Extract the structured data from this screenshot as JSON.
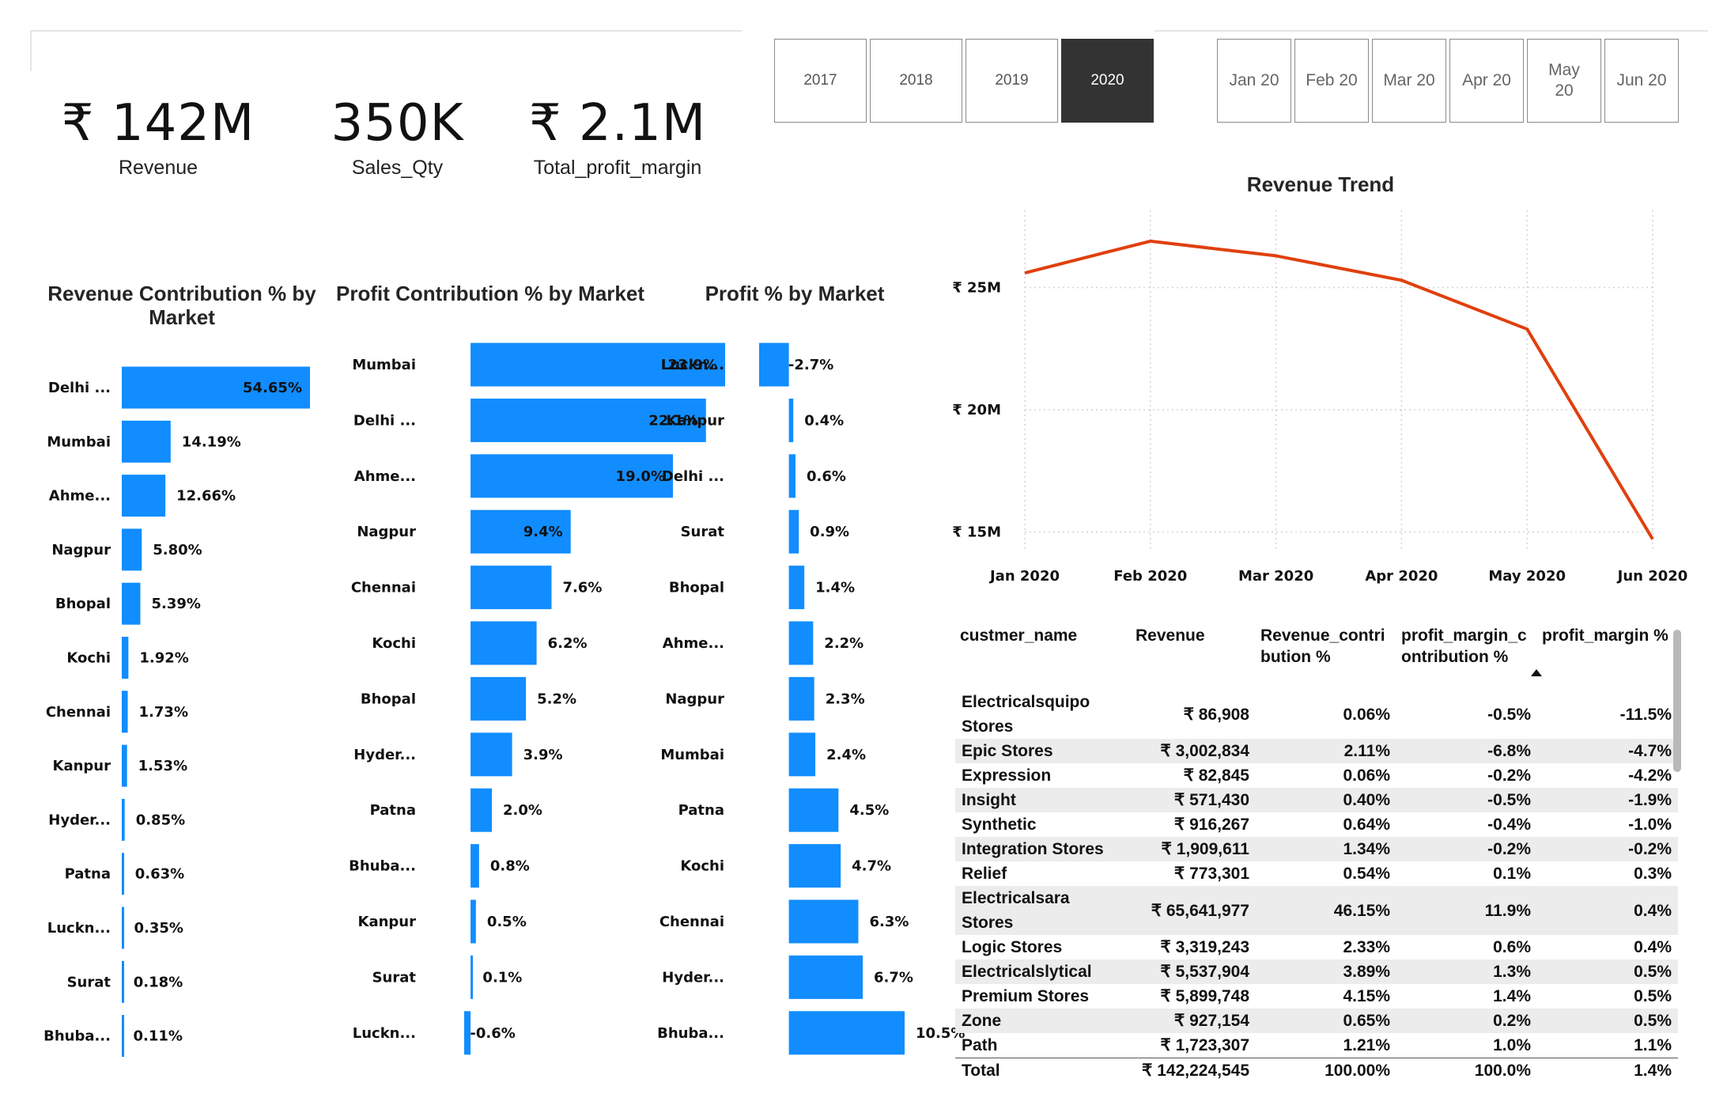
{
  "kpis": [
    {
      "value": "₹ 142M",
      "label": "Revenue"
    },
    {
      "value": "350K",
      "label": "Sales_Qty"
    },
    {
      "value": "₹ 2.1M",
      "label": "Total_profit_margin"
    }
  ],
  "year_slicer": {
    "options": [
      "2017",
      "2018",
      "2019",
      "2020"
    ],
    "selected": "2020"
  },
  "month_slicer": {
    "options": [
      "Jan 20",
      "Feb 20",
      "Mar 20",
      "Apr 20",
      "May\n20",
      "Jun 20"
    ]
  },
  "colors": {
    "bar": "#118DFF",
    "trend_line": "#E0400E",
    "selected_slicer": "#333333"
  },
  "chart_data": [
    {
      "type": "bar",
      "orientation": "horizontal",
      "title": "Revenue Contribution % by Market",
      "categories": [
        "Delhi ...",
        "Mumbai",
        "Ahme...",
        "Nagpur",
        "Bhopal",
        "Kochi",
        "Chennai",
        "Kanpur",
        "Hyder...",
        "Patna",
        "Luckn...",
        "Surat",
        "Bhuba..."
      ],
      "values": [
        54.65,
        14.19,
        12.66,
        5.8,
        5.39,
        1.92,
        1.73,
        1.53,
        0.85,
        0.63,
        0.35,
        0.18,
        0.11
      ],
      "labels": [
        "54.65%",
        "14.19%",
        "12.66%",
        "5.80%",
        "5.39%",
        "1.92%",
        "1.73%",
        "1.53%",
        "0.85%",
        "0.63%",
        "0.35%",
        "0.18%",
        "0.11%"
      ],
      "xlim": [
        0,
        54.65
      ]
    },
    {
      "type": "bar",
      "orientation": "horizontal",
      "title": "Profit Contribution % by Market",
      "categories": [
        "Mumbai",
        "Delhi ...",
        "Ahme...",
        "Nagpur",
        "Chennai",
        "Kochi",
        "Bhopal",
        "Hyder...",
        "Patna",
        "Bhuba...",
        "Kanpur",
        "Surat",
        "Luckn..."
      ],
      "values": [
        23.9,
        22.1,
        19.0,
        9.4,
        7.6,
        6.2,
        5.2,
        3.9,
        2.0,
        0.8,
        0.5,
        0.1,
        -0.6
      ],
      "labels": [
        "23.9%",
        "22.1%",
        "19.0%",
        "9.4%",
        "7.6%",
        "6.2%",
        "5.2%",
        "3.9%",
        "2.0%",
        "0.8%",
        "0.5%",
        "0.1%",
        "-0.6%"
      ],
      "xlim": [
        -0.6,
        23.9
      ]
    },
    {
      "type": "bar",
      "orientation": "horizontal",
      "title": "Profit % by Market",
      "categories": [
        "Luckn...",
        "Kanpur",
        "Delhi ...",
        "Surat",
        "Bhopal",
        "Ahme...",
        "Nagpur",
        "Mumbai",
        "Patna",
        "Kochi",
        "Chennai",
        "Hyder...",
        "Bhuba..."
      ],
      "values": [
        -2.7,
        0.4,
        0.6,
        0.9,
        1.4,
        2.2,
        2.3,
        2.4,
        4.5,
        4.7,
        6.3,
        6.7,
        10.5
      ],
      "labels": [
        "-2.7%",
        "0.4%",
        "0.6%",
        "0.9%",
        "1.4%",
        "2.2%",
        "2.3%",
        "2.4%",
        "4.5%",
        "4.7%",
        "6.3%",
        "6.7%",
        "10.5%"
      ],
      "xlim": [
        -2.7,
        10.5
      ]
    },
    {
      "type": "line",
      "title": "Revenue Trend",
      "x": [
        "Jan 2020",
        "Feb 2020",
        "Mar 2020",
        "Apr 2020",
        "May 2020",
        "Jun 2020"
      ],
      "y": [
        25.6,
        26.9,
        26.3,
        25.3,
        23.3,
        14.7
      ],
      "y_unit": "₹ M",
      "yticks": [
        25,
        20,
        15
      ],
      "ytick_labels": [
        "₹ 25M",
        "₹ 20M",
        "₹ 15M"
      ],
      "ylim": [
        14.3,
        27.9
      ],
      "grid": true
    }
  ],
  "table": {
    "headers": [
      "custmer_name",
      "Revenue",
      "Revenue_contri\nbution %",
      "profit_margin_c\nontribution %",
      "profit_margin %"
    ],
    "rows": [
      [
        "Electricalsquipo\nStores",
        "₹ 86,908",
        "0.06%",
        "-0.5%",
        "-11.5%"
      ],
      [
        "Epic Stores",
        "₹ 3,002,834",
        "2.11%",
        "-6.8%",
        "-4.7%"
      ],
      [
        "Expression",
        "₹ 82,845",
        "0.06%",
        "-0.2%",
        "-4.2%"
      ],
      [
        "Insight",
        "₹ 571,430",
        "0.40%",
        "-0.5%",
        "-1.9%"
      ],
      [
        "Synthetic",
        "₹ 916,267",
        "0.64%",
        "-0.4%",
        "-1.0%"
      ],
      [
        "Integration Stores",
        "₹ 1,909,611",
        "1.34%",
        "-0.2%",
        "-0.2%"
      ],
      [
        "Relief",
        "₹ 773,301",
        "0.54%",
        "0.1%",
        "0.3%"
      ],
      [
        "Electricalsara Stores",
        "₹ 65,641,977",
        "46.15%",
        "11.9%",
        "0.4%"
      ],
      [
        "Logic Stores",
        "₹ 3,319,243",
        "2.33%",
        "0.6%",
        "0.4%"
      ],
      [
        "Electricalslytical",
        "₹ 5,537,904",
        "3.89%",
        "1.3%",
        "0.5%"
      ],
      [
        "Premium Stores",
        "₹ 5,899,748",
        "4.15%",
        "1.4%",
        "0.5%"
      ],
      [
        "Zone",
        "₹ 927,154",
        "0.65%",
        "0.2%",
        "0.5%"
      ],
      [
        "Path",
        "₹ 1,723,307",
        "1.21%",
        "1.0%",
        "1.1%"
      ]
    ],
    "total": [
      "Total",
      "₹ 142,224,545",
      "100.00%",
      "100.0%",
      "1.4%"
    ]
  }
}
